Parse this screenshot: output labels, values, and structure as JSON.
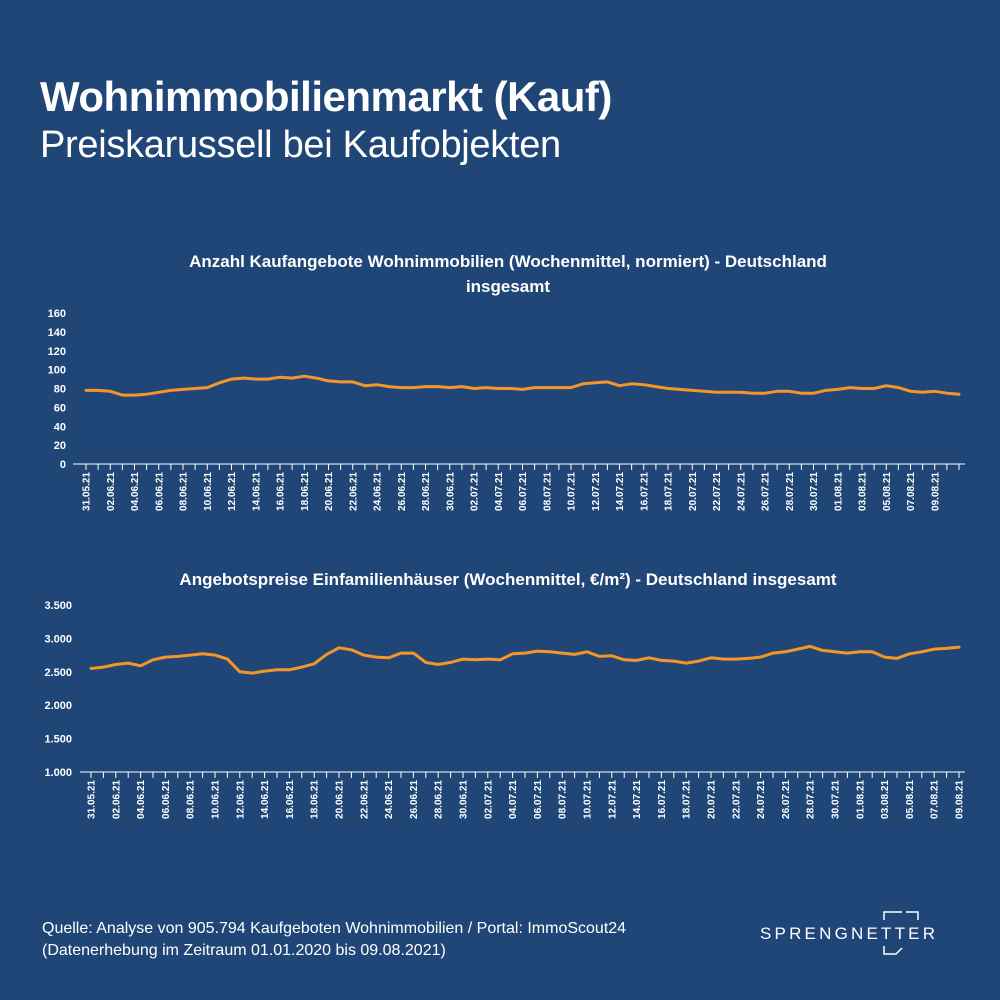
{
  "header": {
    "title": "Wohnimmobilienmarkt (Kauf)",
    "subtitle": "Preiskarussell bei Kaufobjekten"
  },
  "colors": {
    "background": "#1f4676",
    "line": "#f4952a",
    "text": "#ffffff"
  },
  "chart_data": [
    {
      "type": "line",
      "title_line1": "Anzahl Kaufangebote Wohnimmobilien (Wochenmittel, normiert) - Deutschland",
      "title_line2": "insgesamt",
      "ylim": [
        0,
        160
      ],
      "yticks": [
        "0",
        "20",
        "40",
        "60",
        "80",
        "100",
        "120",
        "140",
        "160"
      ],
      "ytick_values": [
        0,
        20,
        40,
        60,
        80,
        100,
        120,
        140,
        160
      ],
      "x_labels": [
        "31.05.21",
        "02.06.21",
        "04.06.21",
        "06.06.21",
        "08.06.21",
        "10.06.21",
        "12.06.21",
        "14.06.21",
        "16.06.21",
        "18.06.21",
        "20.06.21",
        "22.06.21",
        "24.06.21",
        "26.06.21",
        "28.06.21",
        "30.06.21",
        "02.07.21",
        "04.07.21",
        "06.07.21",
        "08.07.21",
        "10.07.21",
        "12.07.21",
        "14.07.21",
        "16.07.21",
        "18.07.21",
        "20.07.21",
        "22.07.21",
        "24.07.21",
        "26.07.21",
        "28.07.21",
        "30.07.21",
        "01.08.21",
        "03.08.21",
        "05.08.21",
        "07.08.21",
        "09.08.21"
      ],
      "grid": false,
      "series": [
        {
          "values": [
            78,
            78,
            77,
            73,
            73,
            74,
            76,
            78,
            79,
            80,
            81,
            86,
            90,
            91,
            90,
            90,
            92,
            91,
            93,
            91,
            88,
            87,
            87,
            83,
            84,
            82,
            81,
            81,
            82,
            82,
            81,
            82,
            80,
            81,
            80,
            80,
            79,
            81,
            81,
            81,
            81,
            85,
            86,
            87,
            83,
            85,
            84,
            82,
            80,
            79,
            78,
            77,
            76,
            76,
            76,
            75,
            75,
            77,
            77,
            75,
            75,
            78,
            79,
            81,
            80,
            80,
            83,
            81,
            77,
            76,
            77,
            75,
            74
          ]
        }
      ]
    },
    {
      "type": "line",
      "title": "Angebotspreise Einfamilienhäuser (Wochenmittel, €/m²) - Deutschland insgesamt",
      "ylim": [
        1000,
        3500
      ],
      "yticks": [
        "1.000",
        "1.500",
        "2.000",
        "2.500",
        "3.000",
        "3.500"
      ],
      "ytick_values": [
        1000,
        1500,
        2000,
        2500,
        3000,
        3500
      ],
      "x_labels": [
        "31.05.21",
        "02.06.21",
        "04.06.21",
        "06.06.21",
        "08.06.21",
        "10.06.21",
        "12.06.21",
        "14.06.21",
        "16.06.21",
        "18.06.21",
        "20.06.21",
        "22.06.21",
        "24.06.21",
        "26.06.21",
        "28.06.21",
        "30.06.21",
        "02.07.21",
        "04.07.21",
        "06.07.21",
        "08.07.21",
        "10.07.21",
        "12.07.21",
        "14.07.21",
        "16.07.21",
        "18.07.21",
        "20.07.21",
        "22.07.21",
        "24.07.21",
        "26.07.21",
        "28.07.21",
        "30.07.21",
        "01.08.21",
        "03.08.21",
        "05.08.21",
        "07.08.21",
        "09.08.21"
      ],
      "grid": false,
      "series": [
        {
          "values": [
            2550,
            2570,
            2610,
            2630,
            2590,
            2680,
            2720,
            2730,
            2750,
            2770,
            2750,
            2690,
            2500,
            2480,
            2510,
            2530,
            2530,
            2570,
            2620,
            2760,
            2860,
            2830,
            2750,
            2720,
            2710,
            2780,
            2780,
            2640,
            2610,
            2640,
            2690,
            2680,
            2690,
            2680,
            2770,
            2780,
            2810,
            2800,
            2780,
            2760,
            2800,
            2730,
            2740,
            2680,
            2670,
            2710,
            2670,
            2660,
            2630,
            2660,
            2710,
            2690,
            2690,
            2700,
            2720,
            2780,
            2800,
            2840,
            2880,
            2820,
            2800,
            2780,
            2800,
            2800,
            2720,
            2700,
            2770,
            2800,
            2840,
            2850,
            2870
          ]
        }
      ]
    }
  ],
  "footer": {
    "source_line1": "Quelle: Analyse von 905.794 Kaufgeboten Wohnimmobilien / Portal: ImmoScout24",
    "source_line2": "(Datenerhebung im Zeitraum  01.01.2020 bis  09.08.2021)",
    "logo_text": "SPRENGNETTER"
  }
}
